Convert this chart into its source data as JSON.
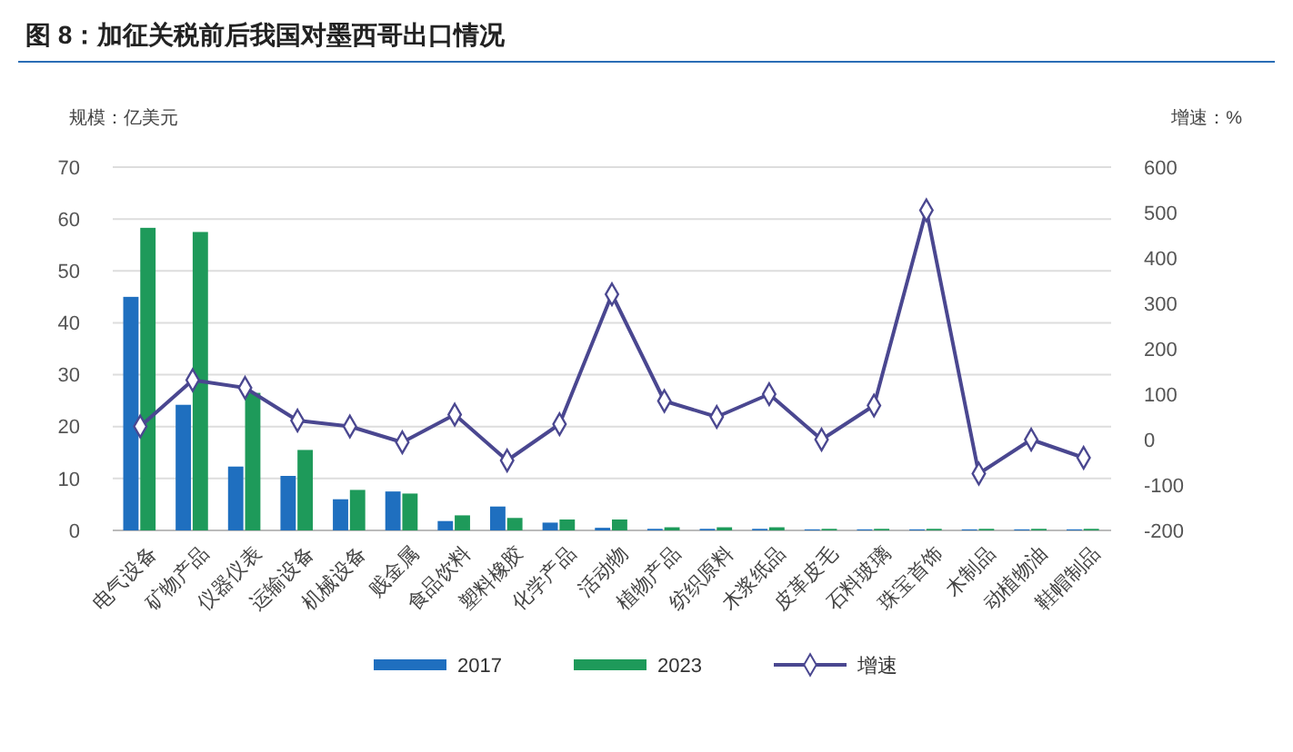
{
  "chart_data": {
    "type": "bar",
    "title": "图 8：加征关税前后我国对墨西哥出口情况",
    "ylabel": "规模：亿美元",
    "y2label": "增速：%",
    "categories": [
      "电气设备",
      "矿物产品",
      "仪器仪表",
      "运输设备",
      "机械设备",
      "贱金属",
      "食品饮料",
      "塑料橡胶",
      "化学产品",
      "活动物",
      "植物产品",
      "纺织原料",
      "木浆纸品",
      "皮革皮毛",
      "石料玻璃",
      "珠宝首饰",
      "木制品",
      "动植物油",
      "鞋帽制品"
    ],
    "series": [
      {
        "name": "2017",
        "color": "#1f6fbf",
        "values": [
          45,
          24.2,
          12.3,
          10.5,
          6,
          7.5,
          1.8,
          4.6,
          1.5,
          0.5,
          0.3,
          0.3,
          0.3,
          0.2,
          0.2,
          0.2,
          0.2,
          0.2,
          0.2
        ]
      },
      {
        "name": "2023",
        "color": "#1e9a5a",
        "values": [
          58.3,
          57.5,
          26.5,
          15.5,
          7.8,
          7.1,
          2.9,
          2.4,
          2.1,
          2.1,
          0.6,
          0.6,
          0.6,
          0.3,
          0.3,
          0.3,
          0.3,
          0.3,
          0.3
        ]
      },
      {
        "name": "增速",
        "type": "line",
        "axis": "y2",
        "color": "#4a4790",
        "marker": "diamond",
        "values": [
          29,
          131,
          114,
          42,
          29,
          -6,
          55,
          -46,
          34,
          320,
          85,
          50,
          100,
          0,
          75,
          505,
          -75,
          0,
          -40
        ]
      }
    ],
    "ylim": [
      0,
      70
    ],
    "yticks": [
      0,
      10,
      20,
      30,
      40,
      50,
      60,
      70
    ],
    "y2lim": [
      -200,
      600
    ],
    "y2ticks": [
      -200,
      -100,
      0,
      100,
      200,
      300,
      400,
      500,
      600
    ],
    "grid": "y",
    "legend": "bottom"
  }
}
